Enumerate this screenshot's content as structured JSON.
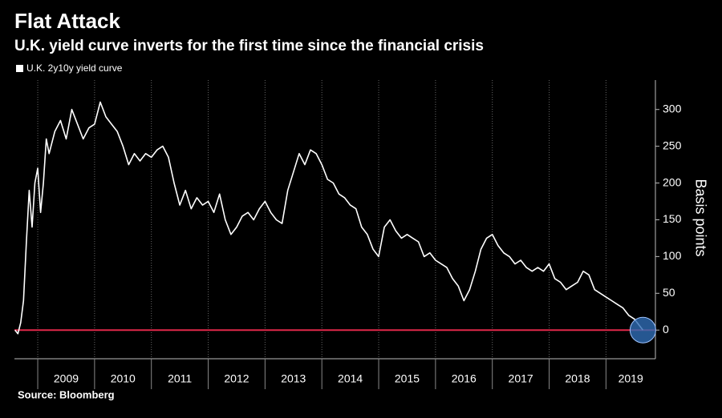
{
  "chart_data": {
    "type": "line",
    "title": "Flat Attack",
    "subtitle": "U.K. yield curve inverts for the first time since the financial crisis",
    "y_label": "Basis points",
    "source": "Source: Bloomberg",
    "xlim": [
      2008.59,
      2019.87
    ],
    "xticks": [
      {
        "value": 2009,
        "label": "2009"
      },
      {
        "value": 2010,
        "label": "2010"
      },
      {
        "value": 2011,
        "label": "2011"
      },
      {
        "value": 2012,
        "label": "2012"
      },
      {
        "value": 2013,
        "label": "2013"
      },
      {
        "value": 2014,
        "label": "2014"
      },
      {
        "value": 2015,
        "label": "2015"
      },
      {
        "value": 2016,
        "label": "2016"
      },
      {
        "value": 2017,
        "label": "2017"
      },
      {
        "value": 2018,
        "label": "2018"
      },
      {
        "value": 2019,
        "label": "2019"
      }
    ],
    "ylim": [
      -39,
      340
    ],
    "yticks": [
      0,
      50,
      100,
      150,
      200,
      250,
      300
    ],
    "grid": true,
    "reference_line": {
      "value": 0,
      "color": "#e0284a"
    },
    "highlight_color": "#2f6db5",
    "series": [
      {
        "name": "U.K. 2y10y yield curve",
        "color": "#ffffff",
        "x": [
          2008.6,
          2008.65,
          2008.7,
          2008.75,
          2008.8,
          2008.85,
          2008.9,
          2008.95,
          2009.0,
          2009.05,
          2009.1,
          2009.15,
          2009.2,
          2009.3,
          2009.4,
          2009.5,
          2009.6,
          2009.7,
          2009.8,
          2009.9,
          2010.0,
          2010.1,
          2010.2,
          2010.3,
          2010.4,
          2010.5,
          2010.6,
          2010.7,
          2010.8,
          2010.9,
          2011.0,
          2011.1,
          2011.2,
          2011.3,
          2011.4,
          2011.5,
          2011.6,
          2011.7,
          2011.8,
          2011.9,
          2012.0,
          2012.1,
          2012.2,
          2012.3,
          2012.4,
          2012.5,
          2012.6,
          2012.7,
          2012.8,
          2012.9,
          2013.0,
          2013.1,
          2013.2,
          2013.3,
          2013.4,
          2013.5,
          2013.6,
          2013.7,
          2013.8,
          2013.9,
          2014.0,
          2014.1,
          2014.2,
          2014.3,
          2014.4,
          2014.5,
          2014.6,
          2014.7,
          2014.8,
          2014.9,
          2015.0,
          2015.1,
          2015.2,
          2015.3,
          2015.4,
          2015.5,
          2015.6,
          2015.7,
          2015.8,
          2015.9,
          2016.0,
          2016.1,
          2016.2,
          2016.3,
          2016.4,
          2016.5,
          2016.6,
          2016.7,
          2016.8,
          2016.9,
          2017.0,
          2017.1,
          2017.2,
          2017.3,
          2017.4,
          2017.5,
          2017.6,
          2017.7,
          2017.8,
          2017.9,
          2018.0,
          2018.1,
          2018.2,
          2018.3,
          2018.4,
          2018.5,
          2018.6,
          2018.7,
          2018.8,
          2018.9,
          2019.0,
          2019.1,
          2019.2,
          2019.3,
          2019.4,
          2019.5,
          2019.6,
          2019.65
        ],
        "values": [
          0,
          -5,
          10,
          40,
          120,
          190,
          140,
          200,
          220,
          160,
          200,
          260,
          240,
          270,
          285,
          260,
          300,
          280,
          260,
          275,
          280,
          310,
          290,
          280,
          270,
          250,
          225,
          240,
          230,
          240,
          235,
          245,
          250,
          235,
          200,
          170,
          190,
          165,
          180,
          170,
          175,
          160,
          185,
          150,
          130,
          140,
          155,
          160,
          150,
          165,
          175,
          160,
          150,
          145,
          190,
          215,
          240,
          225,
          245,
          240,
          225,
          205,
          200,
          185,
          180,
          170,
          165,
          140,
          130,
          110,
          100,
          140,
          150,
          135,
          125,
          130,
          125,
          120,
          100,
          105,
          95,
          90,
          85,
          70,
          60,
          40,
          55,
          80,
          110,
          125,
          130,
          115,
          105,
          100,
          90,
          95,
          85,
          80,
          85,
          80,
          90,
          70,
          65,
          55,
          60,
          65,
          80,
          75,
          55,
          50,
          45,
          40,
          35,
          30,
          20,
          15,
          5,
          0
        ]
      }
    ]
  }
}
